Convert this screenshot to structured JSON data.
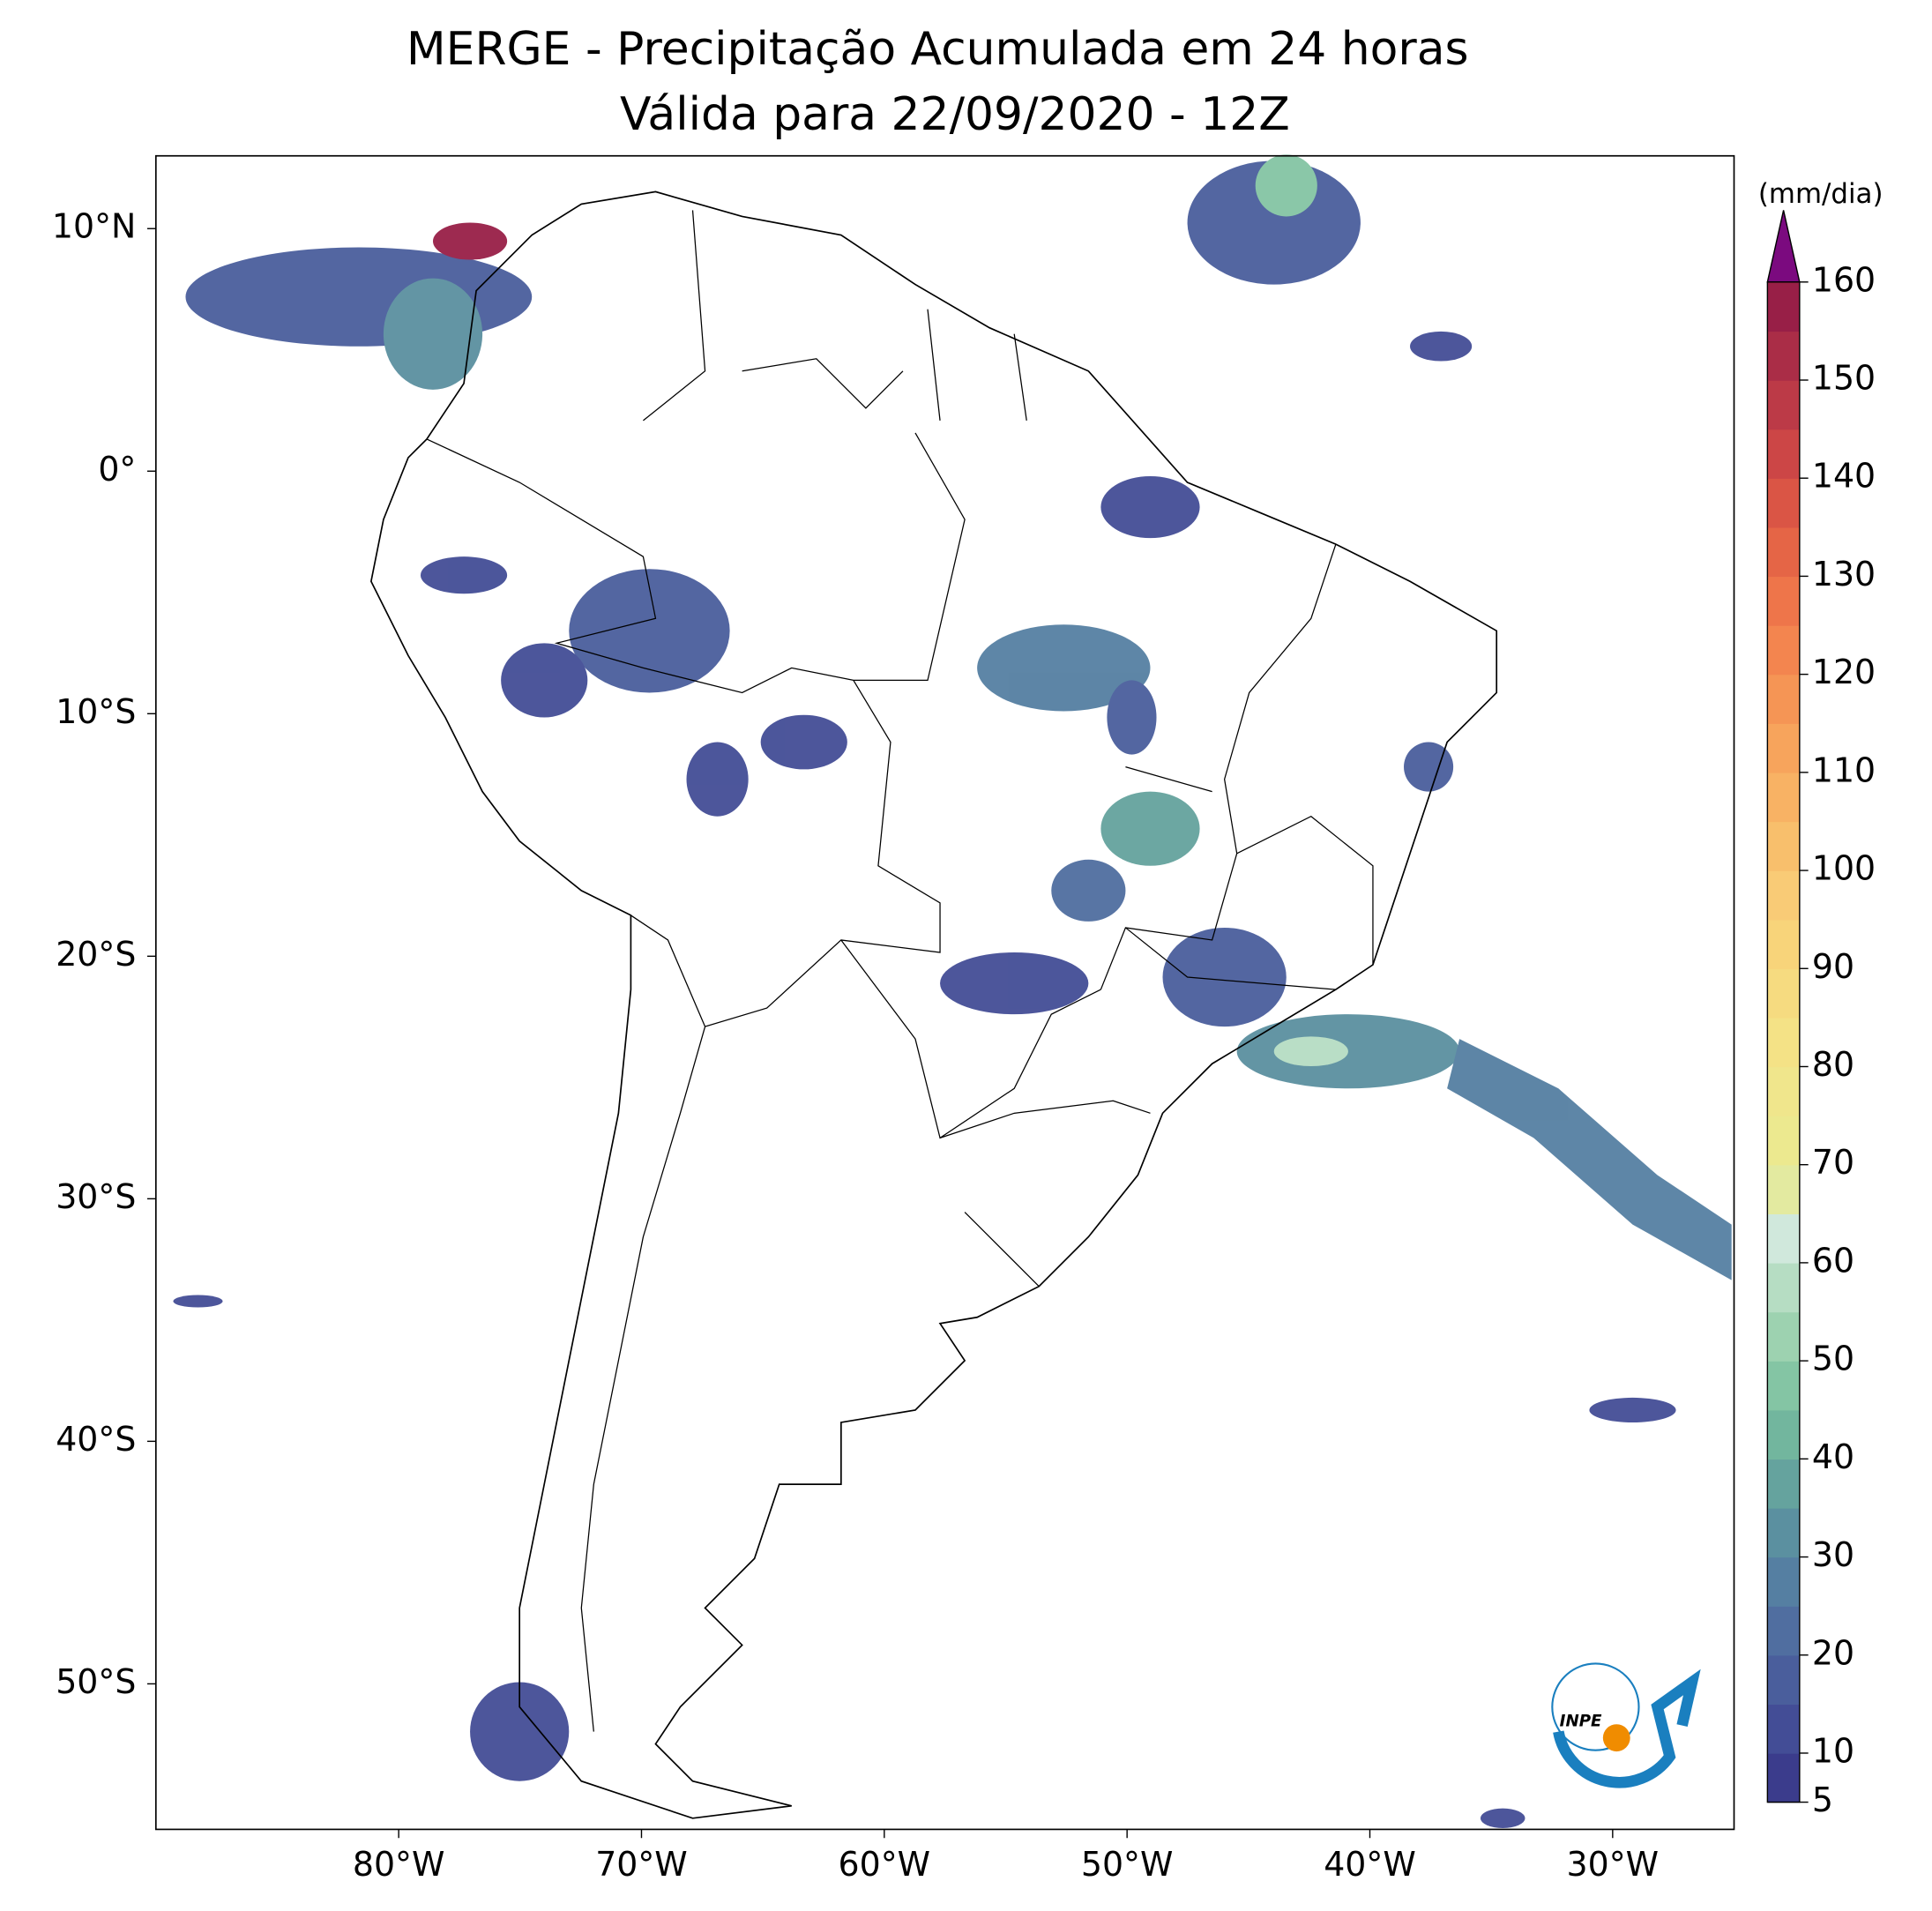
{
  "chart_data": {
    "type": "map",
    "title": "MERGE - Precipitação Acumulada em 24 horas",
    "subtitle": "Válida para 22/09/2020 - 12Z",
    "xlim": [
      -90,
      -25
    ],
    "ylim": [
      -56,
      13
    ],
    "xticks": [
      {
        "value": -80,
        "label": "80°W"
      },
      {
        "value": -70,
        "label": "70°W"
      },
      {
        "value": -60,
        "label": "60°W"
      },
      {
        "value": -50,
        "label": "50°W"
      },
      {
        "value": -40,
        "label": "40°W"
      },
      {
        "value": -30,
        "label": "30°W"
      }
    ],
    "yticks": [
      {
        "value": 10,
        "label": "10°N"
      },
      {
        "value": 0,
        "label": "0°"
      },
      {
        "value": -10,
        "label": "10°S"
      },
      {
        "value": -20,
        "label": "20°S"
      },
      {
        "value": -30,
        "label": "30°S"
      },
      {
        "value": -40,
        "label": "40°S"
      },
      {
        "value": -50,
        "label": "50°S"
      }
    ],
    "colorbar": {
      "label": "(mm/dia)",
      "lim": [
        5,
        160
      ],
      "ticks": [
        5,
        10,
        20,
        30,
        40,
        50,
        60,
        70,
        80,
        90,
        100,
        110,
        120,
        130,
        140,
        150,
        160
      ],
      "colors": [
        "#3b3c8c",
        "#434d96",
        "#4a5e9c",
        "#506ea0",
        "#557fa2",
        "#5b90a0",
        "#65a39e",
        "#72b69e",
        "#84c5a4",
        "#9dd2b0",
        "#b6ddc3",
        "#d0e8dc",
        "#e3eaa0",
        "#ece98f",
        "#f0e68c",
        "#f4e286",
        "#f6db80",
        "#f8d47a",
        "#f9cb76",
        "#f8bf6c",
        "#f8b264",
        "#f7a45c",
        "#f59555",
        "#f3854f",
        "#ee754a",
        "#e56546",
        "#da5545",
        "#cc4646",
        "#bc3a47",
        "#aa2d47",
        "#981f47"
      ],
      "extend_color": "#7b0a7f"
    },
    "logo": "INPE"
  }
}
